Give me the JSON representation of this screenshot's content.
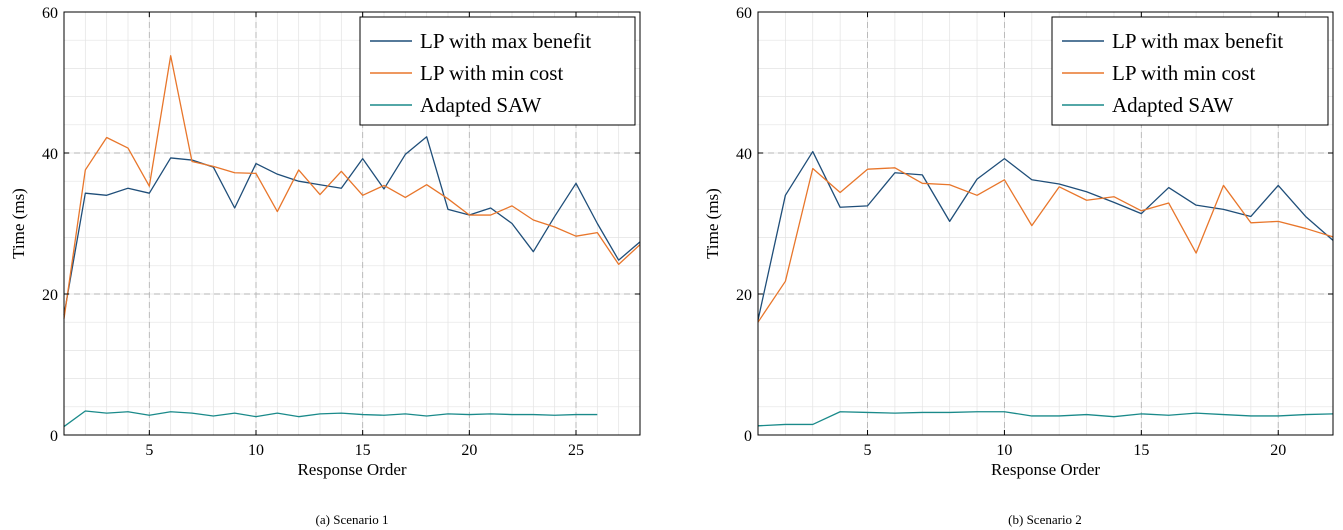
{
  "colors": {
    "lp_max_benefit": "#1f4e79",
    "lp_min_cost": "#e8762b",
    "adapted_saw": "#1a8a8a",
    "grid_major": "#b5b5b5",
    "grid_minor": "#e3e3e3"
  },
  "chart_data": [
    {
      "type": "line",
      "caption": "(a) Scenario 1",
      "xlabel": "Response Order",
      "ylabel": "Time (ms)",
      "xlim": [
        1,
        28
      ],
      "ylim": [
        0,
        60
      ],
      "xticks": [
        5,
        10,
        15,
        20,
        25
      ],
      "yticks": [
        0,
        20,
        40,
        60
      ],
      "grid": true,
      "legend_position": "top-right",
      "series": [
        {
          "name": "LP with max benefit",
          "color": "#1f4e79",
          "x": [
            1,
            2,
            3,
            4,
            5,
            6,
            7,
            8,
            9,
            10,
            11,
            12,
            13,
            14,
            15,
            16,
            17,
            18,
            19,
            20,
            21,
            22,
            23,
            24,
            25,
            26,
            27,
            28
          ],
          "y": [
            17.0,
            34.3,
            34.0,
            35.0,
            34.3,
            39.3,
            39.0,
            38.0,
            32.2,
            38.5,
            37.0,
            36.0,
            35.5,
            35.0,
            39.2,
            34.9,
            39.8,
            42.3,
            32.0,
            31.2,
            32.2,
            30.0,
            26.0,
            31.0,
            35.7,
            30.0,
            24.8,
            27.4
          ]
        },
        {
          "name": "LP with min cost",
          "color": "#e8762b",
          "x": [
            1,
            2,
            3,
            4,
            5,
            6,
            7,
            8,
            9,
            10,
            11,
            12,
            13,
            14,
            15,
            16,
            17,
            18,
            19,
            20,
            21,
            22,
            23,
            24,
            25,
            26,
            27,
            28
          ],
          "y": [
            16.5,
            37.6,
            42.2,
            40.7,
            35.3,
            53.8,
            38.8,
            38.1,
            37.2,
            37.1,
            31.7,
            37.6,
            34.1,
            37.4,
            34.0,
            35.4,
            33.7,
            35.5,
            33.5,
            31.2,
            31.2,
            32.5,
            30.5,
            29.5,
            28.2,
            28.7,
            24.2,
            27.0
          ]
        },
        {
          "name": "Adapted SAW",
          "color": "#1a8a8a",
          "x": [
            1,
            2,
            3,
            4,
            5,
            6,
            7,
            8,
            9,
            10,
            11,
            12,
            13,
            14,
            15,
            16,
            17,
            18,
            19,
            20,
            21,
            22,
            23,
            24,
            25,
            26
          ],
          "y": [
            1.2,
            3.4,
            3.1,
            3.3,
            2.8,
            3.3,
            3.1,
            2.7,
            3.1,
            2.6,
            3.1,
            2.6,
            3.0,
            3.1,
            2.9,
            2.8,
            3.0,
            2.7,
            3.0,
            2.9,
            3.0,
            2.9,
            2.9,
            2.8,
            2.9,
            2.9
          ]
        }
      ]
    },
    {
      "type": "line",
      "caption": "(b) Scenario 2",
      "xlabel": "Response Order",
      "ylabel": "Time (ms)",
      "xlim": [
        1,
        22
      ],
      "ylim": [
        0,
        60
      ],
      "xticks": [
        5,
        10,
        15,
        20
      ],
      "yticks": [
        0,
        20,
        40,
        60
      ],
      "grid": true,
      "legend_position": "top-right",
      "series": [
        {
          "name": "LP with max benefit",
          "color": "#1f4e79",
          "x": [
            1,
            2,
            3,
            4,
            5,
            6,
            7,
            8,
            9,
            10,
            11,
            12,
            13,
            14,
            15,
            16,
            17,
            18,
            19,
            20,
            21,
            22
          ],
          "y": [
            16.3,
            34.0,
            40.2,
            32.3,
            32.5,
            37.2,
            36.9,
            30.3,
            36.3,
            39.2,
            36.2,
            35.6,
            34.5,
            33.0,
            31.4,
            35.1,
            32.6,
            32.0,
            31.0,
            35.4,
            31.0,
            27.6
          ]
        },
        {
          "name": "LP with min cost",
          "color": "#e8762b",
          "x": [
            1,
            2,
            3,
            4,
            5,
            6,
            7,
            8,
            9,
            10,
            11,
            12,
            13,
            14,
            15,
            16,
            17,
            18,
            19,
            20,
            21,
            22
          ],
          "y": [
            16.0,
            21.8,
            37.8,
            34.4,
            37.7,
            37.9,
            35.7,
            35.5,
            34.0,
            36.2,
            29.7,
            35.2,
            33.3,
            33.8,
            31.8,
            32.9,
            25.8,
            35.4,
            30.1,
            30.3,
            29.3,
            28.1
          ]
        },
        {
          "name": "Adapted SAW",
          "color": "#1a8a8a",
          "x": [
            1,
            2,
            3,
            4,
            5,
            6,
            7,
            8,
            9,
            10,
            11,
            12,
            13,
            14,
            15,
            16,
            17,
            18,
            19,
            20,
            21,
            22
          ],
          "y": [
            1.3,
            1.5,
            1.5,
            3.3,
            3.2,
            3.1,
            3.2,
            3.2,
            3.3,
            3.3,
            2.7,
            2.7,
            2.9,
            2.6,
            3.0,
            2.8,
            3.1,
            2.9,
            2.7,
            2.7,
            2.9,
            3.0
          ]
        }
      ]
    }
  ]
}
